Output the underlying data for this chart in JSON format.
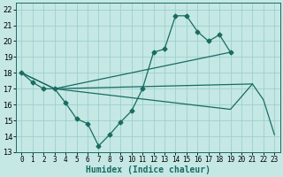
{
  "xlabel": "Humidex (Indice chaleur)",
  "bg_color": "#c5e8e5",
  "grid_color": "#9dcfcc",
  "line_color": "#1a6b60",
  "xlim": [
    -0.5,
    23.5
  ],
  "ylim": [
    13,
    22.4
  ],
  "xticks": [
    0,
    1,
    2,
    3,
    4,
    5,
    6,
    7,
    8,
    9,
    10,
    11,
    12,
    13,
    14,
    15,
    16,
    17,
    18,
    19,
    20,
    21,
    22,
    23
  ],
  "yticks": [
    13,
    14,
    15,
    16,
    17,
    18,
    19,
    20,
    21,
    22
  ],
  "series_main": {
    "x": [
      0,
      1,
      2,
      3,
      4,
      5,
      6,
      7,
      8,
      9,
      10,
      11,
      12,
      13,
      14,
      15,
      16,
      17,
      18,
      19
    ],
    "y": [
      18,
      17.4,
      17,
      17,
      16.1,
      15.1,
      14.8,
      13.4,
      14.1,
      14.9,
      15.6,
      17.0,
      19.3,
      19.5,
      21.6,
      21.6,
      20.6,
      20.0,
      20.4,
      19.3
    ]
  },
  "line1": {
    "x": [
      0,
      3,
      19
    ],
    "y": [
      18,
      17,
      19.3
    ]
  },
  "line2": {
    "x": [
      0,
      3,
      21,
      22,
      23
    ],
    "y": [
      18,
      17,
      17.3,
      16.3,
      14.1
    ]
  },
  "line3": {
    "x": [
      3,
      19,
      21
    ],
    "y": [
      17,
      15.7,
      17.3
    ]
  },
  "xlabel_fontsize": 7,
  "tick_fontsize": 6
}
